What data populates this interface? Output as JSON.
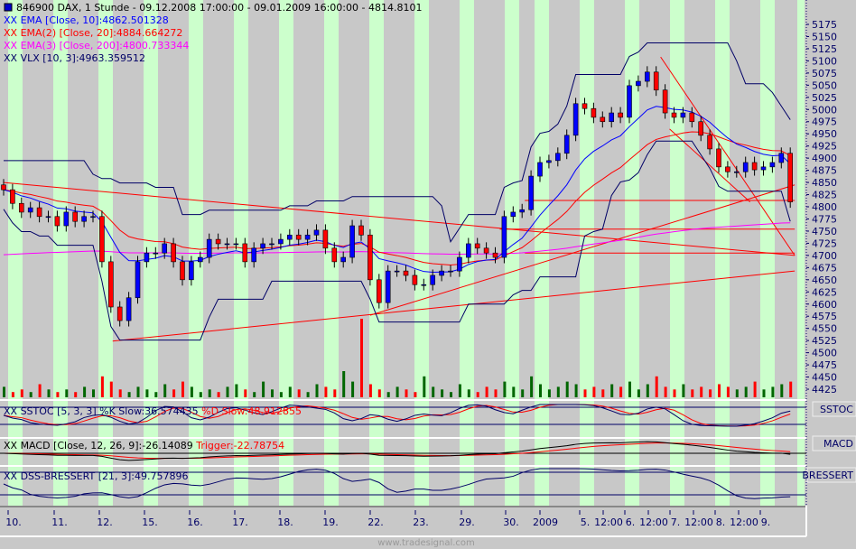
{
  "header": {
    "title": "846900  DAX, 1 Stunde - 09.12.2008 17:00:00 - 09.01.2009 16:00:00 - 4814.8101",
    "legend": [
      {
        "text": "XX EMA [Close, 10]:4862.501328",
        "color": "#0000ff"
      },
      {
        "text": "XX EMA(2) [Close, 20]:4884.664272",
        "color": "#ff0000"
      },
      {
        "text": "XX EMA(3) [Close, 200]:4800.733344",
        "color": "#ff00ff"
      },
      {
        "text": "XX VLX [10, 3]:4963.359512",
        "color": "#000066"
      }
    ]
  },
  "panels": {
    "sstoc": {
      "name": "SSTOC",
      "label_k": "XX SSTOC [5, 3, 3] %K Slow:36.574435",
      "label_d": "%D Slow:48.912855"
    },
    "macd": {
      "name": "MACD",
      "label": "XX MACD [Close, 12, 26, 9]:-26.14089",
      "trigger": "Trigger:-22.78754"
    },
    "dss": {
      "name": "BRESSERT",
      "label": "XX DSS-BRESSERT [21, 3]:49.757896"
    }
  },
  "footer": "www.tradesignal.com",
  "colors": {
    "background": "#c8c8c8",
    "stripe": "#ccffcc",
    "bull": "#0000ff",
    "bear": "#ff0000",
    "ema10": "#0000ff",
    "ema20": "#ff0000",
    "ema200": "#ff00ff",
    "vlx": "#000066",
    "trendline": "#ff0000",
    "vol_up": "#006600",
    "vol_down": "#ff0000",
    "axis_text": "#000066"
  },
  "chart_data": {
    "type": "candlestick",
    "symbol": "846900 DAX",
    "interval": "1 Stunde",
    "y_ticks": [
      5175,
      5150,
      5125,
      5100,
      5075,
      5050,
      5025,
      5000,
      4975,
      4950,
      4925,
      4900,
      4875,
      4850,
      4825,
      4800,
      4775,
      4750,
      4725,
      4700,
      4675,
      4650,
      4625,
      4600,
      4575,
      4550,
      4525,
      4500,
      4475,
      4450,
      4425
    ],
    "ylim": [
      4425,
      5175
    ],
    "x_tick_labels": [
      "10.",
      "11.",
      "12.",
      "15.",
      "16.",
      "17.",
      "18.",
      "19.",
      "22.",
      "23.",
      "29.",
      "30.",
      "2009",
      "5.",
      "12:00",
      "6.",
      "12:00",
      "7.",
      "12:00",
      "8.",
      "12:00",
      "9."
    ],
    "close": [
      4835,
      4807,
      4789,
      4798,
      4780,
      4780,
      4761,
      4789,
      4770,
      4780,
      4780,
      4687,
      4594,
      4566,
      4613,
      4687,
      4705,
      4705,
      4724,
      4687,
      4650,
      4687,
      4696,
      4733,
      4724,
      4724,
      4724,
      4687,
      4715,
      4724,
      4724,
      4733,
      4742,
      4733,
      4742,
      4752,
      4715,
      4687,
      4696,
      4761,
      4742,
      4650,
      4603,
      4668,
      4668,
      4659,
      4640,
      4640,
      4659,
      4668,
      4668,
      4696,
      4724,
      4715,
      4705,
      4696,
      4780,
      4789,
      4794,
      4863,
      4891,
      4895,
      4910,
      4947,
      5012,
      5002,
      4984,
      4975,
      4993,
      4984,
      5049,
      5058,
      5077,
      5040,
      4993,
      4984,
      4993,
      4975,
      4947,
      4919,
      4882,
      4872,
      4872,
      4891,
      4876,
      4882,
      4891,
      4910,
      4810
    ],
    "volume": [
      4,
      2,
      3,
      2,
      5,
      3,
      2,
      3,
      2,
      4,
      3,
      8,
      6,
      3,
      2,
      4,
      3,
      2,
      5,
      3,
      6,
      4,
      2,
      3,
      2,
      4,
      5,
      3,
      2,
      6,
      3,
      2,
      4,
      3,
      2,
      5,
      4,
      3,
      10,
      6,
      30,
      5,
      3,
      2,
      4,
      3,
      2,
      8,
      4,
      3,
      2,
      5,
      3,
      2,
      4,
      3,
      6,
      4,
      3,
      8,
      5,
      3,
      4,
      6,
      5,
      3,
      4,
      3,
      5,
      4,
      6,
      3,
      5,
      8,
      4,
      3,
      5,
      3,
      4,
      3,
      5,
      4,
      3,
      4,
      6,
      3,
      4,
      5,
      6
    ],
    "trendlines": [
      {
        "from": [
          0,
          4850
        ],
        "to": [
          88.5,
          4700
        ]
      },
      {
        "from": [
          12.2,
          4524
        ],
        "to": [
          88.5,
          4668
        ]
      },
      {
        "from": [
          41,
          4577
        ],
        "to": [
          88.5,
          4845
        ]
      },
      {
        "from": [
          58.3,
          4813
        ],
        "to": [
          88.5,
          4813
        ]
      },
      {
        "from": [
          55.5,
          4754
        ],
        "to": [
          88.5,
          4754
        ]
      },
      {
        "from": [
          58.3,
          4705
        ],
        "to": [
          88.5,
          4705
        ]
      },
      {
        "from": [
          73.5,
          5108
        ],
        "to": [
          88.5,
          4700
        ]
      },
      {
        "from": [
          74.5,
          4960
        ],
        "to": [
          83.5,
          4810
        ]
      }
    ]
  }
}
